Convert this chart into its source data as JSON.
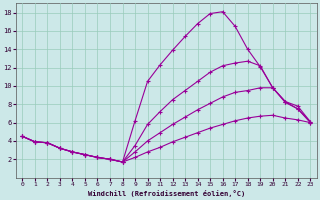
{
  "xlabel": "Windchill (Refroidissement éolien,°C)",
  "background_color": "#cce8e8",
  "grid_color": "#99ccbb",
  "line_color": "#990099",
  "xlim": [
    -0.5,
    23.5
  ],
  "ylim": [
    0,
    19
  ],
  "xticks": [
    0,
    1,
    2,
    3,
    4,
    5,
    6,
    7,
    8,
    9,
    10,
    11,
    12,
    13,
    14,
    15,
    16,
    17,
    18,
    19,
    20,
    21,
    22,
    23
  ],
  "yticks": [
    2,
    4,
    6,
    8,
    10,
    12,
    14,
    16,
    18
  ],
  "line1_x": [
    0,
    1,
    2,
    3,
    4,
    5,
    6,
    7,
    8,
    9,
    10,
    11,
    12,
    13,
    14,
    15,
    16,
    17,
    18,
    19,
    20,
    21,
    22,
    23
  ],
  "line1_y": [
    4.5,
    3.9,
    3.8,
    3.2,
    2.8,
    2.5,
    2.2,
    2.0,
    1.7,
    6.2,
    10.5,
    12.3,
    13.9,
    15.4,
    16.8,
    17.9,
    18.1,
    16.5,
    14.0,
    12.1,
    9.8,
    8.2,
    7.5,
    6.0
  ],
  "line2_x": [
    0,
    1,
    2,
    3,
    4,
    5,
    6,
    7,
    8,
    9,
    10,
    11,
    12,
    13,
    14,
    15,
    16,
    17,
    18,
    19,
    20,
    21,
    22,
    23
  ],
  "line2_y": [
    4.5,
    3.9,
    3.8,
    3.2,
    2.8,
    2.5,
    2.2,
    2.0,
    1.7,
    3.5,
    5.8,
    7.2,
    8.5,
    9.5,
    10.5,
    11.5,
    12.2,
    12.5,
    12.7,
    12.2,
    9.8,
    8.3,
    7.8,
    6.1
  ],
  "line3_x": [
    0,
    1,
    2,
    3,
    4,
    5,
    6,
    7,
    8,
    9,
    10,
    11,
    12,
    13,
    14,
    15,
    16,
    17,
    18,
    19,
    20,
    21,
    22,
    23
  ],
  "line3_y": [
    4.5,
    3.9,
    3.8,
    3.2,
    2.8,
    2.5,
    2.2,
    2.0,
    1.7,
    2.8,
    4.0,
    4.9,
    5.8,
    6.6,
    7.4,
    8.1,
    8.8,
    9.3,
    9.5,
    9.8,
    9.8,
    8.3,
    7.5,
    6.1
  ],
  "line4_x": [
    0,
    1,
    2,
    3,
    4,
    5,
    6,
    7,
    8,
    9,
    10,
    11,
    12,
    13,
    14,
    15,
    16,
    17,
    18,
    19,
    20,
    21,
    22,
    23
  ],
  "line4_y": [
    4.5,
    3.9,
    3.8,
    3.2,
    2.8,
    2.5,
    2.2,
    2.0,
    1.7,
    2.2,
    2.8,
    3.3,
    3.9,
    4.4,
    4.9,
    5.4,
    5.8,
    6.2,
    6.5,
    6.7,
    6.8,
    6.5,
    6.3,
    6.0
  ]
}
